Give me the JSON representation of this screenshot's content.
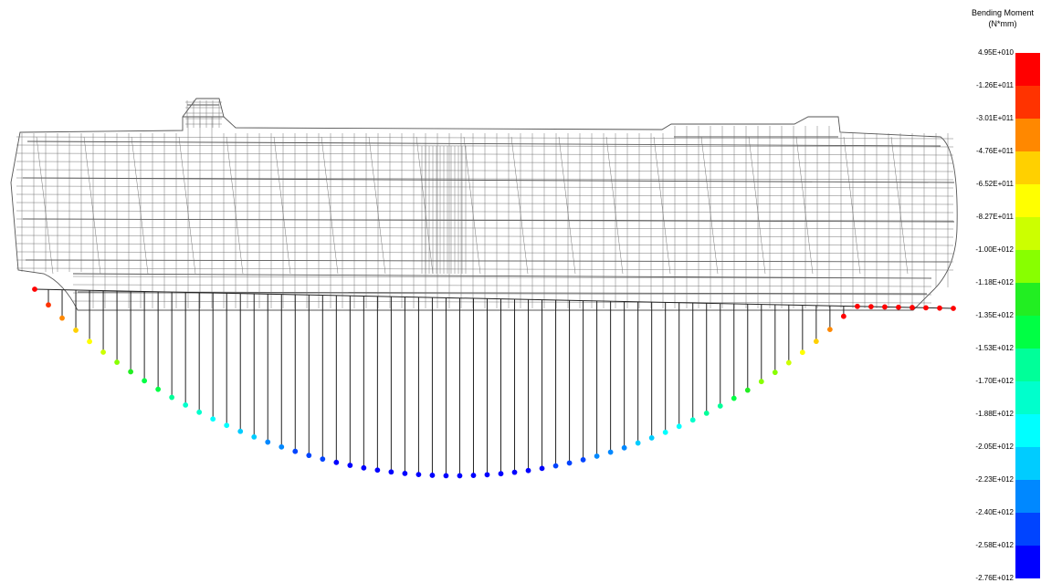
{
  "legend": {
    "title_line1": "Bending Moment",
    "title_line2": "(N*mm)",
    "labels": [
      "4.95E+010",
      "-1.26E+011",
      "-3.01E+011",
      "-4.76E+011",
      "-6.52E+011",
      "-8.27E+011",
      "-1.00E+012",
      "-1.18E+012",
      "-1.35E+012",
      "-1.53E+012",
      "-1.70E+012",
      "-1.88E+012",
      "-2.05E+012",
      "-2.23E+012",
      "-2.40E+012",
      "-2.58E+012",
      "-2.76E+012"
    ],
    "colors": [
      "#ff0000",
      "#ff3300",
      "#ff8800",
      "#ffd000",
      "#ffff00",
      "#ccff00",
      "#88ff00",
      "#22ee22",
      "#00ff44",
      "#00ff99",
      "#00ffcc",
      "#00ffff",
      "#00ccff",
      "#0088ff",
      "#0044ff",
      "#0000ff"
    ]
  },
  "bending_moment_diagram": {
    "point_count": 68,
    "max_value": 49500000000.0,
    "min_value": -2760000000000.0
  }
}
